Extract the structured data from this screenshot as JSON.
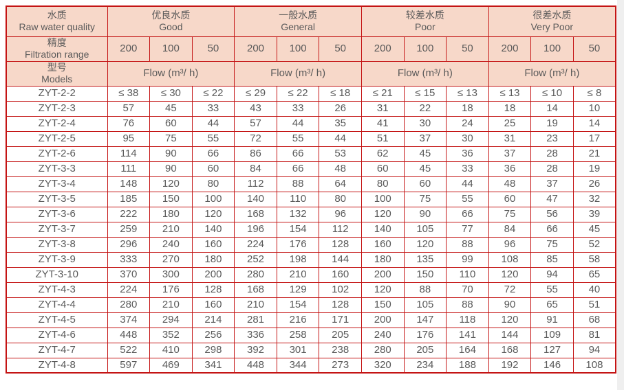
{
  "colors": {
    "border": "#c41414",
    "header_bg": "#f7d8c9",
    "text": "#595959",
    "page_bg": "#ffffff",
    "right_strip": "#efefef"
  },
  "table": {
    "header": {
      "raw_water": {
        "zh": "水质",
        "en": "Raw water quality"
      },
      "qualities": [
        {
          "zh": "优良水质",
          "en": "Good"
        },
        {
          "zh": "一般水质",
          "en": "General"
        },
        {
          "zh": "较差水质",
          "en": "Poor"
        },
        {
          "zh": "很差水质",
          "en": "Very Poor"
        }
      ],
      "filtration": {
        "zh": "精度",
        "en": "Filtration range"
      },
      "models": {
        "zh": "型号",
        "en": "Models"
      }
    },
    "precision_values": [
      "200",
      "100",
      "50"
    ],
    "flow_label": "Flow (m³/ h)",
    "rows": [
      {
        "model": "ZYT-2-2",
        "values": [
          "≤ 38",
          "≤ 30",
          "≤ 22",
          "≤ 29",
          "≤ 22",
          "≤ 18",
          "≤ 21",
          "≤ 15",
          "≤ 13",
          "≤ 13",
          "≤ 10",
          "≤ 8"
        ]
      },
      {
        "model": "ZYT-2-3",
        "values": [
          "57",
          "45",
          "33",
          "43",
          "33",
          "26",
          "31",
          "22",
          "18",
          "18",
          "14",
          "10"
        ]
      },
      {
        "model": "ZYT-2-4",
        "values": [
          "76",
          "60",
          "44",
          "57",
          "44",
          "35",
          "41",
          "30",
          "24",
          "25",
          "19",
          "14"
        ]
      },
      {
        "model": "ZYT-2-5",
        "values": [
          "95",
          "75",
          "55",
          "72",
          "55",
          "44",
          "51",
          "37",
          "30",
          "31",
          "23",
          "17"
        ]
      },
      {
        "model": "ZYT-2-6",
        "values": [
          "114",
          "90",
          "66",
          "86",
          "66",
          "53",
          "62",
          "45",
          "36",
          "37",
          "28",
          "21"
        ]
      },
      {
        "model": "ZYT-3-3",
        "values": [
          "111",
          "90",
          "60",
          "84",
          "66",
          "48",
          "60",
          "45",
          "33",
          "36",
          "28",
          "19"
        ]
      },
      {
        "model": "ZYT-3-4",
        "values": [
          "148",
          "120",
          "80",
          "112",
          "88",
          "64",
          "80",
          "60",
          "44",
          "48",
          "37",
          "26"
        ]
      },
      {
        "model": "ZYT-3-5",
        "values": [
          "185",
          "150",
          "100",
          "140",
          "110",
          "80",
          "100",
          "75",
          "55",
          "60",
          "47",
          "32"
        ]
      },
      {
        "model": "ZYT-3-6",
        "values": [
          "222",
          "180",
          "120",
          "168",
          "132",
          "96",
          "120",
          "90",
          "66",
          "75",
          "56",
          "39"
        ]
      },
      {
        "model": "ZYT-3-7",
        "values": [
          "259",
          "210",
          "140",
          "196",
          "154",
          "112",
          "140",
          "105",
          "77",
          "84",
          "66",
          "45"
        ]
      },
      {
        "model": "ZYT-3-8",
        "values": [
          "296",
          "240",
          "160",
          "224",
          "176",
          "128",
          "160",
          "120",
          "88",
          "96",
          "75",
          "52"
        ]
      },
      {
        "model": "ZYT-3-9",
        "values": [
          "333",
          "270",
          "180",
          "252",
          "198",
          "144",
          "180",
          "135",
          "99",
          "108",
          "85",
          "58"
        ]
      },
      {
        "model": "ZYT-3-10",
        "values": [
          "370",
          "300",
          "200",
          "280",
          "210",
          "160",
          "200",
          "150",
          "110",
          "120",
          "94",
          "65"
        ]
      },
      {
        "model": "ZYT-4-3",
        "values": [
          "224",
          "176",
          "128",
          "168",
          "129",
          "102",
          "120",
          "88",
          "70",
          "72",
          "55",
          "40"
        ]
      },
      {
        "model": "ZYT-4-4",
        "values": [
          "280",
          "210",
          "160",
          "210",
          "154",
          "128",
          "150",
          "105",
          "88",
          "90",
          "65",
          "51"
        ]
      },
      {
        "model": "ZYT-4-5",
        "values": [
          "374",
          "294",
          "214",
          "281",
          "216",
          "171",
          "200",
          "147",
          "118",
          "120",
          "91",
          "68"
        ]
      },
      {
        "model": "ZYT-4-6",
        "values": [
          "448",
          "352",
          "256",
          "336",
          "258",
          "205",
          "240",
          "176",
          "141",
          "144",
          "109",
          "81"
        ]
      },
      {
        "model": "ZYT-4-7",
        "values": [
          "522",
          "410",
          "298",
          "392",
          "301",
          "238",
          "280",
          "205",
          "164",
          "168",
          "127",
          "94"
        ]
      },
      {
        "model": "ZYT-4-8",
        "values": [
          "597",
          "469",
          "341",
          "448",
          "344",
          "273",
          "320",
          "234",
          "188",
          "192",
          "146",
          "108"
        ]
      }
    ]
  }
}
